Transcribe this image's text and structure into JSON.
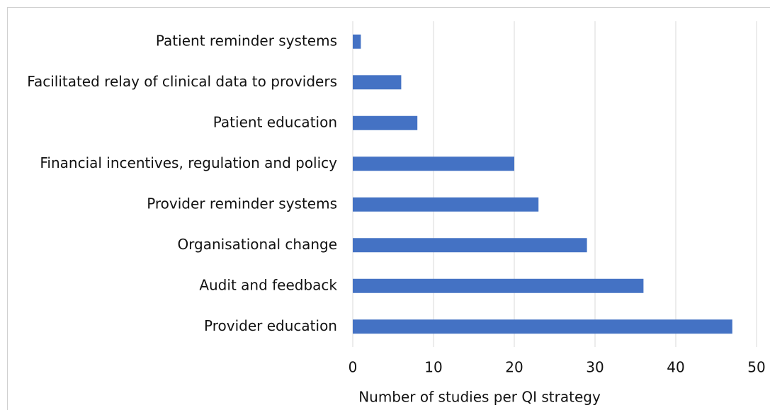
{
  "chart_data": {
    "type": "barh",
    "categories": [
      "Patient reminder systems",
      "Facilitated relay of clinical data to providers",
      "Patient education",
      "Financial incentives, regulation and policy",
      "Provider reminder systems",
      "Organisational change",
      "Audit and feedback",
      "Provider education"
    ],
    "values": [
      1,
      6,
      8,
      20,
      23,
      29,
      36,
      47
    ],
    "color": "#4472c4",
    "xlabel": "Number of studies per QI strategy",
    "xlim": [
      0,
      50
    ],
    "xticks": [
      0,
      10,
      20,
      30,
      40,
      50
    ],
    "grid": true
  }
}
